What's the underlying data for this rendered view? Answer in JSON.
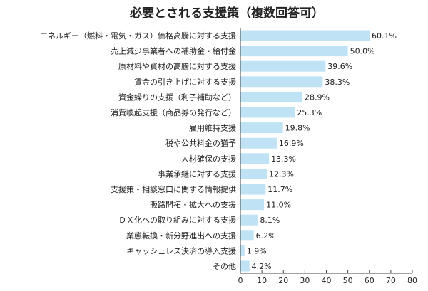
{
  "chart_data": {
    "type": "bar",
    "orientation": "horizontal",
    "title": "必要とされる支援策（複数回答可）",
    "categories": [
      "エネルギー（燃料・電気・ガス）価格高騰に対する支援",
      "売上減少事業者への補助金・給付金",
      "原材料や資材の高騰に対する支援",
      "賃金の引き上げに対する支援",
      "資金繰りの支援（利子補助など）",
      "消費喚起支援（商品券の発行など）",
      "雇用維持支援",
      "税や公共料金の猶予",
      "人材確保の支援",
      "事業承継に対する支援",
      "支援策・相談窓口に関する情報提供",
      "販路開拓・拡大への支援",
      "ＤＸ化への取り組みに対する支援",
      "業態転換・新分野進出への支援",
      "キャッシュレス決済の導入支援",
      "その他"
    ],
    "values": [
      60.1,
      50.0,
      39.6,
      38.3,
      28.9,
      25.3,
      19.8,
      16.9,
      13.3,
      12.3,
      11.7,
      11.0,
      8.1,
      6.2,
      1.9,
      4.2
    ],
    "value_labels": [
      "60.1%",
      "50.0%",
      "39.6%",
      "38.3%",
      "28.9%",
      "25.3%",
      "19.8%",
      "16.9%",
      "13.3%",
      "12.3%",
      "11.7%",
      "11.0%",
      "8.1%",
      "6.2%",
      "1.9%",
      "4.2%"
    ],
    "xlim": [
      0,
      80
    ],
    "xticks": [
      "0",
      "10",
      "20",
      "30",
      "40",
      "50",
      "60",
      "70",
      "80"
    ],
    "bar_color": "#bfe3f4",
    "axis_color": "#444444",
    "grid": false
  }
}
